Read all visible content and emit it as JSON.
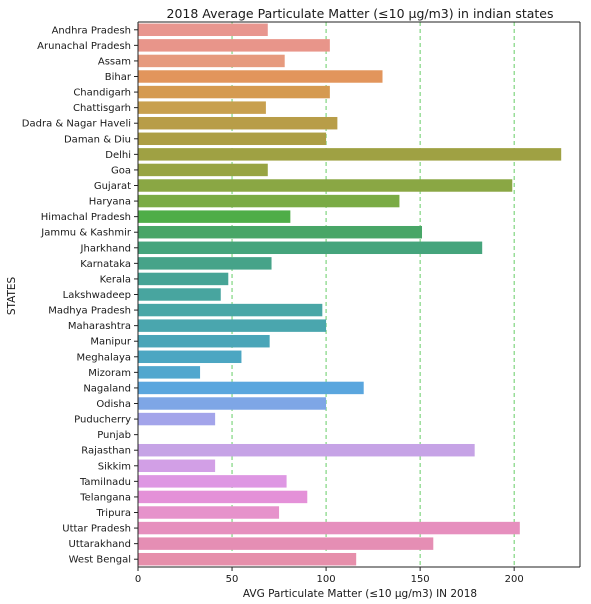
{
  "chart_data": {
    "type": "bar",
    "orientation": "horizontal",
    "title": "2018  Average Particulate Matter (≤10 μg/m3) in indian states",
    "xlabel": "AVG Particulate Matter (≤10 μg/m3) IN 2018",
    "ylabel": "STATES",
    "xlim": [
      0,
      235
    ],
    "xticks": [
      0,
      50,
      100,
      150,
      200
    ],
    "grid": "x-dashed",
    "grid_color": "#66cc66",
    "categories": [
      "Andhra Pradesh",
      "Arunachal Pradesh",
      "Assam",
      "Bihar",
      "Chandigarh",
      "Chattisgarh",
      "Dadra & Nagar Haveli",
      "Daman & Diu",
      "Delhi",
      "Goa",
      "Gujarat",
      "Haryana",
      "Himachal Pradesh",
      "Jammu & Kashmir",
      "Jharkhand",
      "Karnataka",
      "Kerala",
      "Lakshwadeep",
      "Madhya Pradesh",
      "Maharashtra",
      "Manipur",
      "Meghalaya",
      "Mizoram",
      "Nagaland",
      "Odisha",
      "Puducherry",
      "Punjab",
      "Rajasthan",
      "Sikkim",
      "Tamilnadu",
      "Telangana",
      "Tripura",
      "Uttar Pradesh",
      "Uttarakhand",
      "West Bengal"
    ],
    "values": [
      69,
      102,
      78,
      130,
      102,
      68,
      106,
      100,
      225,
      69,
      199,
      139,
      81,
      151,
      183,
      71,
      48,
      44,
      98,
      100,
      70,
      55,
      33,
      120,
      100,
      41,
      0,
      179,
      41,
      79,
      90,
      75,
      203,
      157,
      116
    ],
    "colors": [
      "#e8968f",
      "#e8958a",
      "#e69a7e",
      "#e2955c",
      "#d59a50",
      "#c8a04f",
      "#b89d48",
      "#ad9e45",
      "#9fa143",
      "#98a443",
      "#8aa744",
      "#7aab45",
      "#4fad48",
      "#48a667",
      "#45a47c",
      "#46a389",
      "#47a496",
      "#48a59f",
      "#49a6a6",
      "#4aa6ae",
      "#4aa5b8",
      "#4ca6c2",
      "#51a7ce",
      "#5aa6de",
      "#7ea6e6",
      "#a3a4ea",
      "#b6a2e8",
      "#c6a3e6",
      "#d29fe6",
      "#de97e3",
      "#e491d8",
      "#e692cb",
      "#e68fbe",
      "#e58eb4",
      "#e68fab"
    ]
  }
}
